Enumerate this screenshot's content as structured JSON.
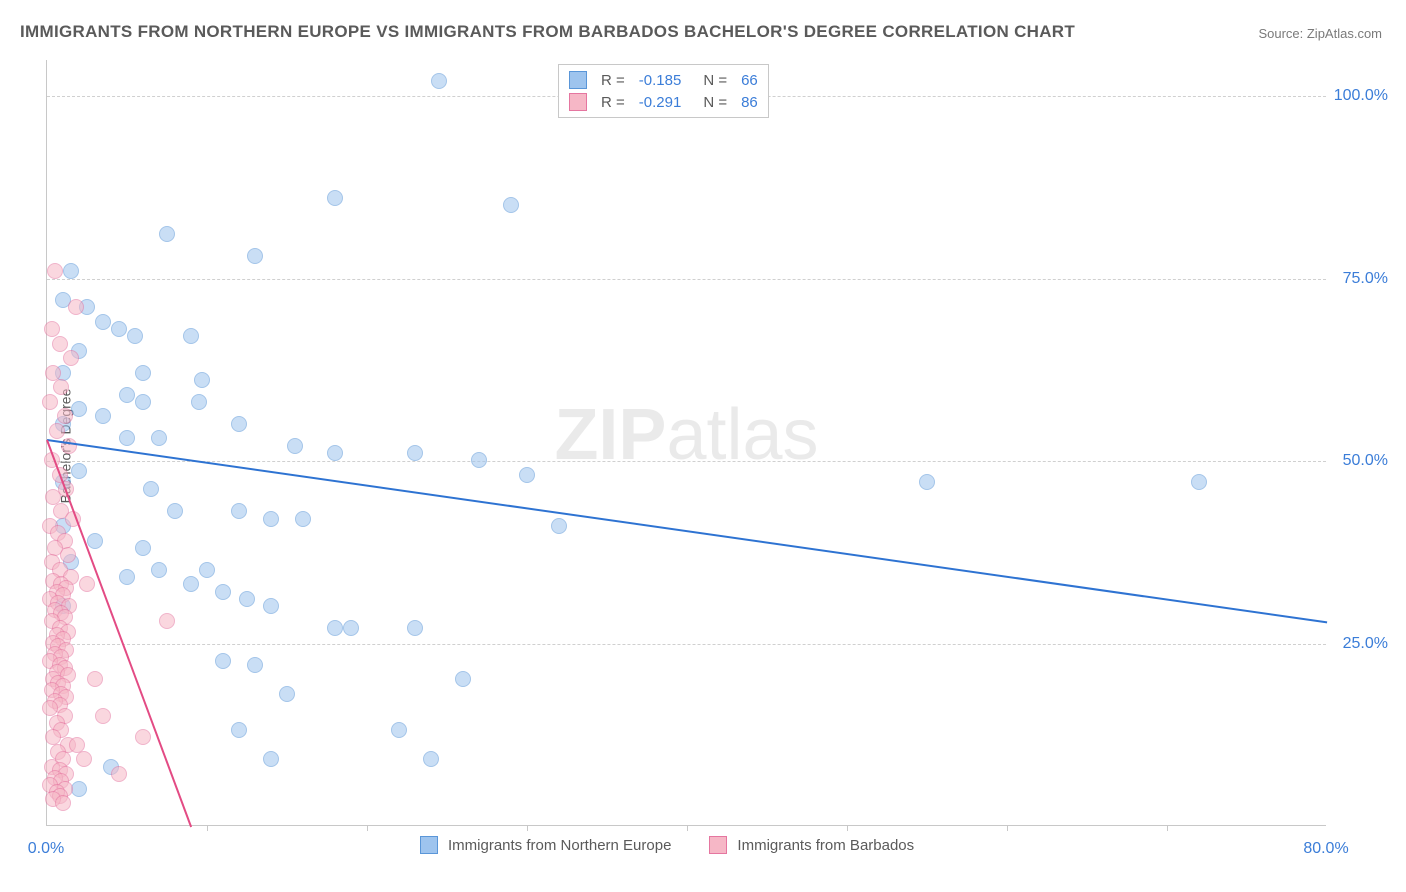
{
  "title": "IMMIGRANTS FROM NORTHERN EUROPE VS IMMIGRANTS FROM BARBADOS BACHELOR'S DEGREE CORRELATION CHART",
  "source": "Source: ZipAtlas.com",
  "watermark_a": "ZIP",
  "watermark_b": "atlas",
  "ylabel": "Bachelor's Degree",
  "chart": {
    "type": "scatter-correlation",
    "background_color": "#ffffff",
    "grid_color": "#d0d0d0",
    "axis_color": "#c8c8c8",
    "value_color": "#3b7dd8",
    "label_color": "#5a5a5a",
    "title_fontsize": 17,
    "label_fontsize": 14,
    "tick_fontsize": 16,
    "xlim": [
      0,
      80
    ],
    "ylim": [
      0,
      105
    ],
    "y_ticks": [
      25,
      50,
      75,
      100
    ],
    "y_tick_labels": [
      "25.0%",
      "50.0%",
      "75.0%",
      "100.0%"
    ],
    "x_ticks": [
      0,
      20,
      40,
      60,
      80
    ],
    "x_tick_labels": [
      "0.0%",
      "",
      "",
      "",
      "80.0%"
    ],
    "x_minor_ticks": [
      10,
      20,
      30,
      40,
      50,
      60,
      70
    ],
    "marker_radius": 8,
    "marker_opacity": 0.55,
    "line_width": 2,
    "series": [
      {
        "id": "northern_europe",
        "label": "Immigrants from Northern Europe",
        "fill": "#9ec4ee",
        "stroke": "#5a96d8",
        "r": -0.185,
        "n": 66,
        "trend": {
          "x1": 0,
          "y1": 53,
          "x2": 80,
          "y2": 28,
          "color": "#2e73d2"
        },
        "points": [
          [
            24.5,
            102
          ],
          [
            42,
            102
          ],
          [
            18,
            86
          ],
          [
            29,
            85
          ],
          [
            7.5,
            81
          ],
          [
            13,
            78
          ],
          [
            1.5,
            76
          ],
          [
            1,
            72
          ],
          [
            2.5,
            71
          ],
          [
            3.5,
            69
          ],
          [
            4.5,
            68
          ],
          [
            5.5,
            67
          ],
          [
            9,
            67
          ],
          [
            2,
            65
          ],
          [
            1,
            62
          ],
          [
            6,
            62
          ],
          [
            9.7,
            61
          ],
          [
            5,
            59
          ],
          [
            6,
            58
          ],
          [
            9.5,
            58
          ],
          [
            2,
            57
          ],
          [
            3.5,
            56
          ],
          [
            1,
            55
          ],
          [
            12,
            55
          ],
          [
            5,
            53
          ],
          [
            7,
            53
          ],
          [
            15.5,
            52
          ],
          [
            18,
            51
          ],
          [
            23,
            51
          ],
          [
            27,
            50
          ],
          [
            30,
            48
          ],
          [
            55,
            47
          ],
          [
            72,
            47
          ],
          [
            2,
            48.5
          ],
          [
            1,
            47
          ],
          [
            6.5,
            46
          ],
          [
            8,
            43
          ],
          [
            12,
            43
          ],
          [
            14,
            42
          ],
          [
            16,
            42
          ],
          [
            32,
            41
          ],
          [
            1,
            41
          ],
          [
            3,
            39
          ],
          [
            6,
            38
          ],
          [
            1.5,
            36
          ],
          [
            7,
            35
          ],
          [
            5,
            34
          ],
          [
            9,
            33
          ],
          [
            11,
            32
          ],
          [
            12.5,
            31
          ],
          [
            14,
            30
          ],
          [
            1,
            30
          ],
          [
            18,
            27
          ],
          [
            19,
            27
          ],
          [
            23,
            27
          ],
          [
            26,
            20
          ],
          [
            11,
            22.5
          ],
          [
            13,
            22
          ],
          [
            15,
            18
          ],
          [
            12,
            13
          ],
          [
            22,
            13
          ],
          [
            14,
            9
          ],
          [
            24,
            9
          ],
          [
            4,
            8
          ],
          [
            2,
            5
          ],
          [
            10,
            35
          ]
        ]
      },
      {
        "id": "barbados",
        "label": "Immigrants from Barbados",
        "fill": "#f6b7c6",
        "stroke": "#e576a0",
        "r": -0.291,
        "n": 86,
        "trend": {
          "x1": 0,
          "y1": 53,
          "x2": 9,
          "y2": 0,
          "color": "#e34b84"
        },
        "points": [
          [
            0.5,
            76
          ],
          [
            1.8,
            71
          ],
          [
            0.3,
            68
          ],
          [
            0.8,
            66
          ],
          [
            1.5,
            64
          ],
          [
            0.4,
            62
          ],
          [
            0.9,
            60
          ],
          [
            0.2,
            58
          ],
          [
            1.1,
            56
          ],
          [
            0.6,
            54
          ],
          [
            1.4,
            52
          ],
          [
            0.3,
            50
          ],
          [
            0.8,
            48
          ],
          [
            1.2,
            46
          ],
          [
            0.4,
            45
          ],
          [
            0.9,
            43
          ],
          [
            1.6,
            42
          ],
          [
            0.2,
            41
          ],
          [
            0.7,
            40
          ],
          [
            1.1,
            39
          ],
          [
            0.5,
            38
          ],
          [
            1.3,
            37
          ],
          [
            0.3,
            36
          ],
          [
            0.8,
            35
          ],
          [
            1.5,
            34
          ],
          [
            0.4,
            33.5
          ],
          [
            0.9,
            33
          ],
          [
            1.2,
            32.5
          ],
          [
            0.6,
            32
          ],
          [
            1.0,
            31.5
          ],
          [
            0.2,
            31
          ],
          [
            0.7,
            30.5
          ],
          [
            1.4,
            30
          ],
          [
            0.5,
            29.5
          ],
          [
            0.9,
            29
          ],
          [
            1.1,
            28.5
          ],
          [
            0.3,
            28
          ],
          [
            0.8,
            27
          ],
          [
            1.3,
            26.5
          ],
          [
            0.6,
            26
          ],
          [
            1.0,
            25.5
          ],
          [
            0.4,
            25
          ],
          [
            0.7,
            24.5
          ],
          [
            1.2,
            24
          ],
          [
            0.5,
            23.5
          ],
          [
            0.9,
            23
          ],
          [
            0.2,
            22.5
          ],
          [
            0.8,
            22
          ],
          [
            1.1,
            21.5
          ],
          [
            0.6,
            21
          ],
          [
            1.3,
            20.5
          ],
          [
            0.4,
            20
          ],
          [
            0.7,
            19.5
          ],
          [
            1.0,
            19
          ],
          [
            0.3,
            18.5
          ],
          [
            0.9,
            18
          ],
          [
            1.2,
            17.5
          ],
          [
            0.5,
            17
          ],
          [
            0.8,
            16.5
          ],
          [
            0.2,
            16
          ],
          [
            1.1,
            15
          ],
          [
            0.6,
            14
          ],
          [
            0.9,
            13
          ],
          [
            0.4,
            12
          ],
          [
            1.3,
            11
          ],
          [
            0.7,
            10
          ],
          [
            1.0,
            9
          ],
          [
            0.3,
            8
          ],
          [
            0.8,
            7.5
          ],
          [
            1.2,
            7
          ],
          [
            0.5,
            6.5
          ],
          [
            0.9,
            6
          ],
          [
            0.2,
            5.5
          ],
          [
            1.1,
            5
          ],
          [
            0.6,
            4.5
          ],
          [
            0.8,
            4
          ],
          [
            0.4,
            3.5
          ],
          [
            1.0,
            3
          ],
          [
            1.9,
            11
          ],
          [
            2.3,
            9
          ],
          [
            3.5,
            15
          ],
          [
            4.5,
            7
          ],
          [
            6,
            12
          ],
          [
            7.5,
            28
          ],
          [
            2.5,
            33
          ],
          [
            3.0,
            20
          ]
        ]
      }
    ],
    "legend_top": {
      "r_label": "R =",
      "n_label": "N ="
    }
  }
}
